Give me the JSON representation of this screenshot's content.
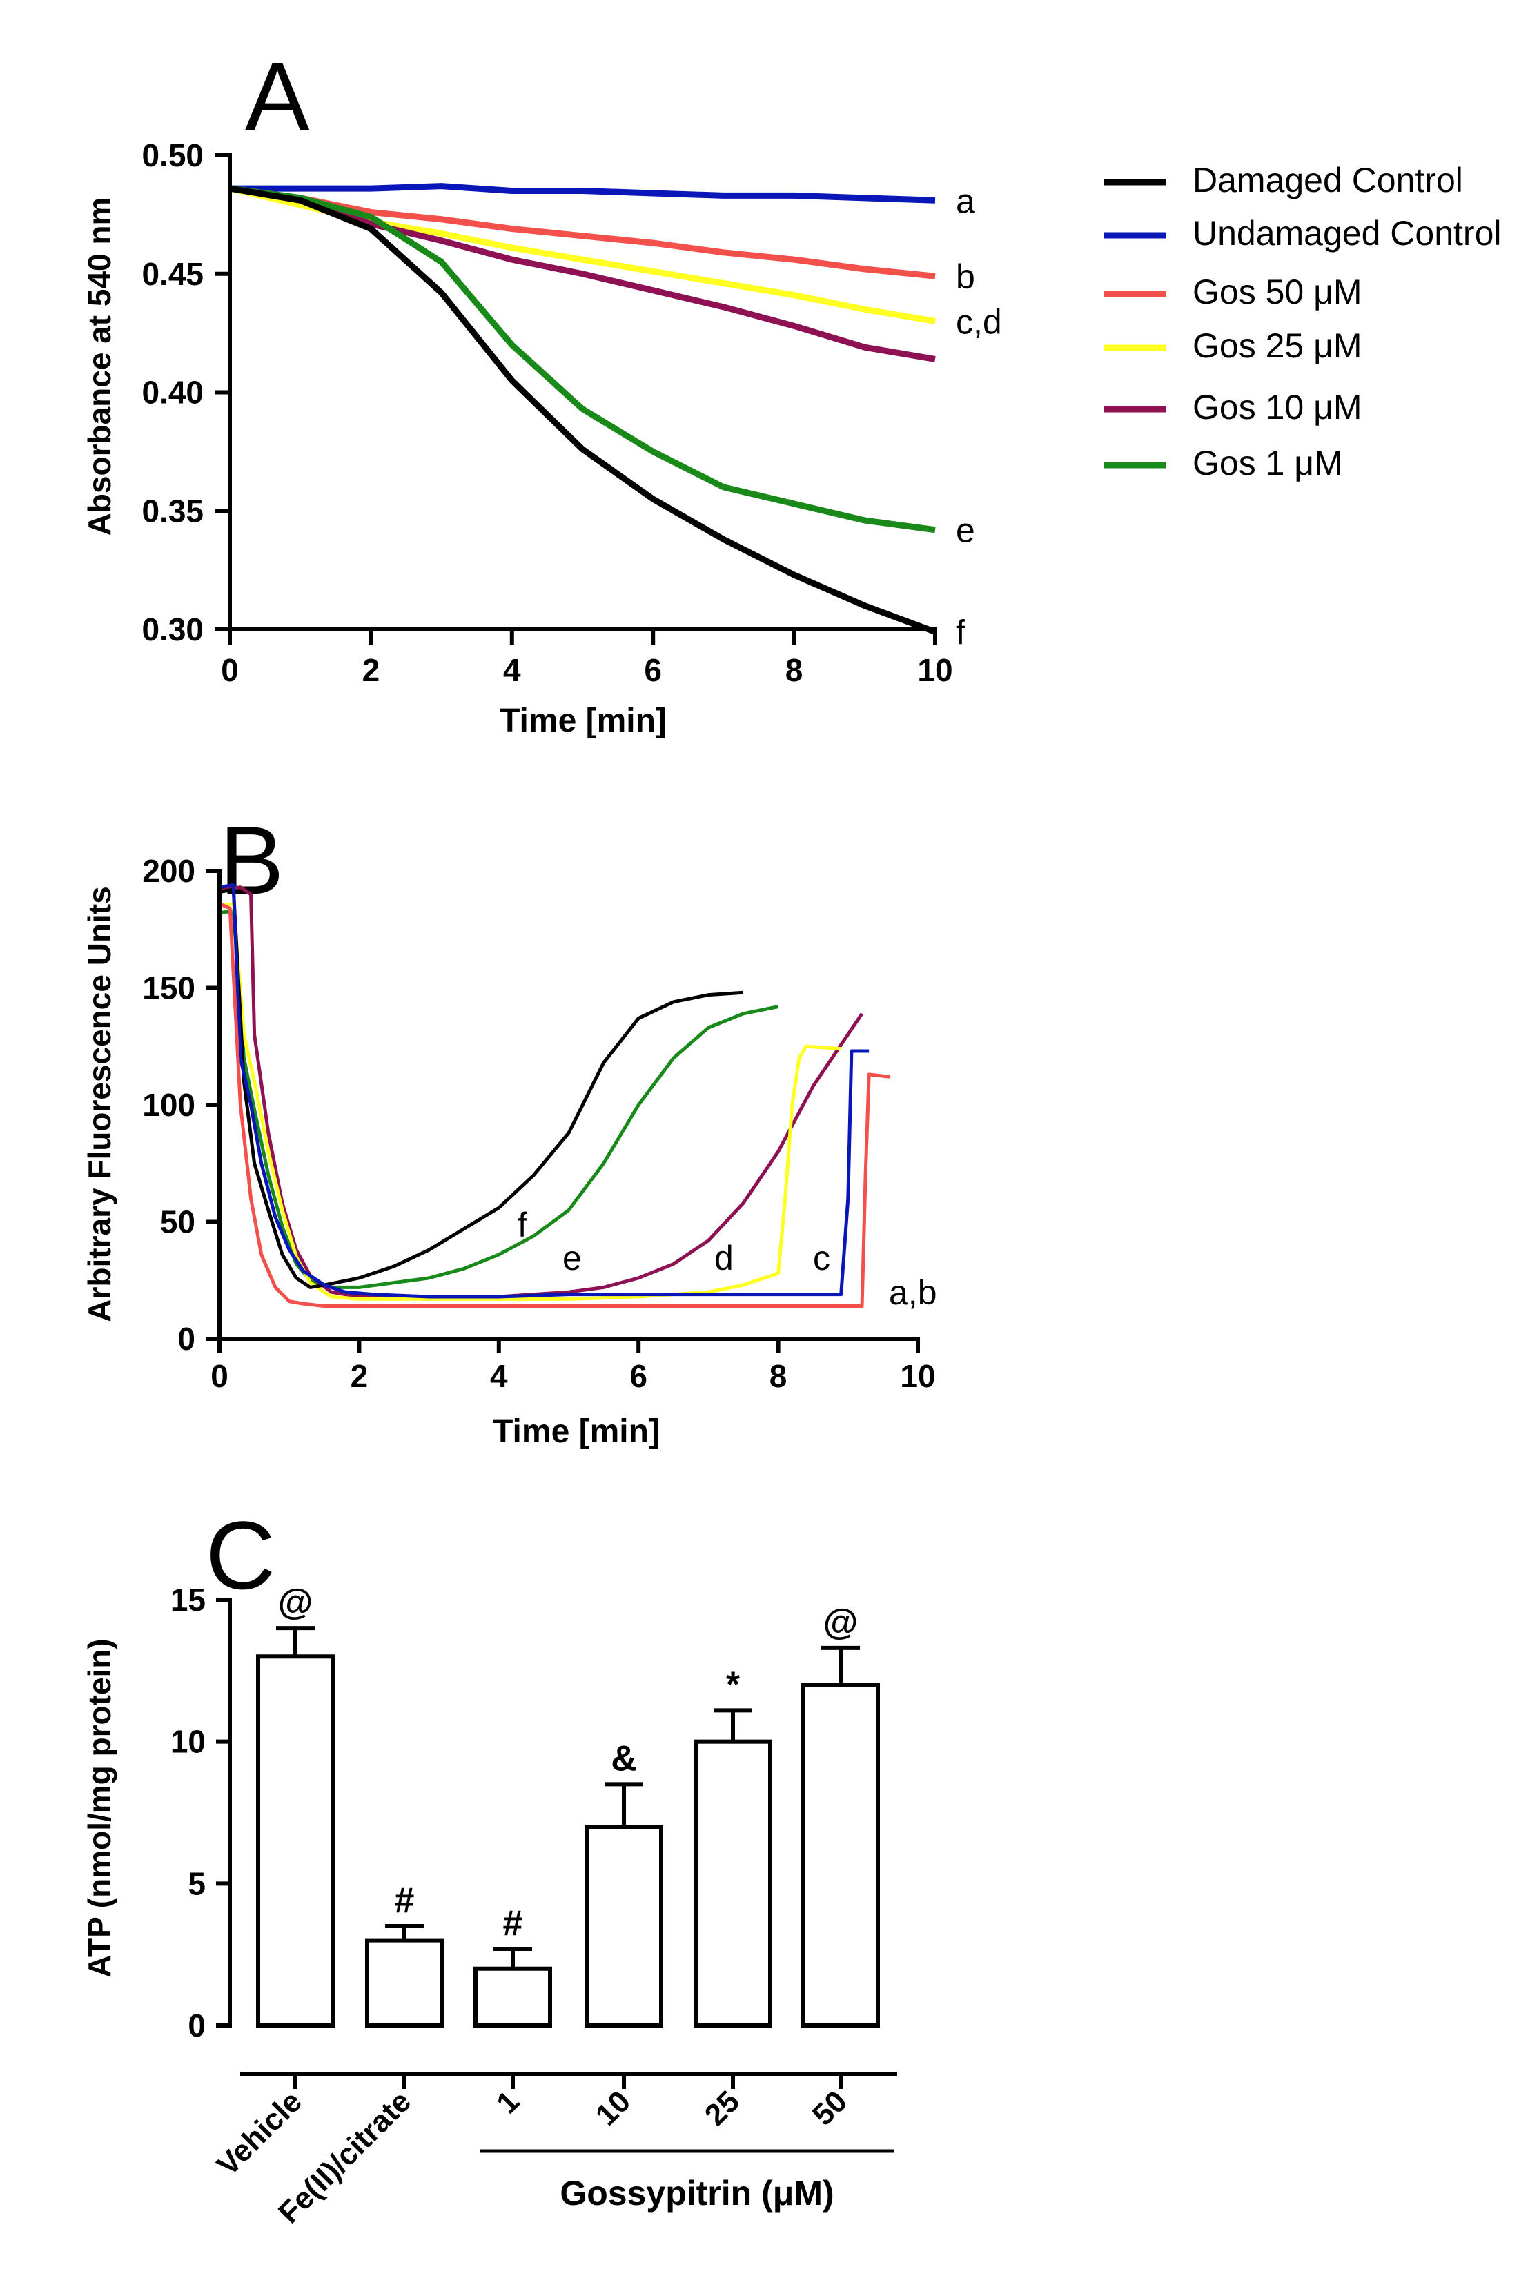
{
  "chart_data": [
    {
      "type": "line",
      "panel_label": "A",
      "title": "",
      "xlabel": "Time [min]",
      "ylabel": "Absorbance at 540 nm",
      "xlim": [
        0,
        10
      ],
      "ylim": [
        0.3,
        0.5
      ],
      "xticks": [
        0,
        2,
        4,
        6,
        8,
        10
      ],
      "yticks": [
        0.3,
        0.35,
        0.4,
        0.45,
        0.5
      ],
      "ytick_labels": [
        "0.30",
        "0.35",
        "0.40",
        "0.45",
        "0.50"
      ],
      "grid": false,
      "legend_position": "right",
      "series": [
        {
          "name": "Damaged Control",
          "color": "#000000",
          "end_label": "f",
          "x": [
            0,
            1,
            2,
            3,
            4,
            5,
            6,
            7,
            8,
            9,
            10
          ],
          "y": [
            0.486,
            0.481,
            0.469,
            0.442,
            0.405,
            0.376,
            0.355,
            0.338,
            0.323,
            0.31,
            0.299
          ]
        },
        {
          "name": "Undamaged Control",
          "color": "#0a17b8",
          "end_label": "a",
          "x": [
            0,
            1,
            2,
            3,
            4,
            5,
            6,
            7,
            8,
            9,
            10
          ],
          "y": [
            0.486,
            0.486,
            0.486,
            0.487,
            0.485,
            0.485,
            0.484,
            0.483,
            0.483,
            0.482,
            0.481
          ]
        },
        {
          "name": "Gos 50 μM",
          "color": "#f4504b",
          "end_label": "b",
          "x": [
            0,
            1,
            2,
            3,
            4,
            5,
            6,
            7,
            8,
            9,
            10
          ],
          "y": [
            0.486,
            0.482,
            0.476,
            0.473,
            0.469,
            0.466,
            0.463,
            0.459,
            0.456,
            0.452,
            0.449
          ]
        },
        {
          "name": "Gos 25 μM",
          "color": "#ffff22",
          "end_label": "c,d",
          "x": [
            0,
            1,
            2,
            3,
            4,
            5,
            6,
            7,
            8,
            9,
            10
          ],
          "y": [
            0.486,
            0.479,
            0.472,
            0.467,
            0.461,
            0.456,
            0.451,
            0.446,
            0.441,
            0.435,
            0.43
          ]
        },
        {
          "name": "Gos 10 μM",
          "color": "#8e1253",
          "end_label": "",
          "x": [
            0,
            1,
            2,
            3,
            4,
            5,
            6,
            7,
            8,
            9,
            10
          ],
          "y": [
            0.486,
            0.482,
            0.471,
            0.464,
            0.456,
            0.45,
            0.443,
            0.436,
            0.428,
            0.419,
            0.414
          ]
        },
        {
          "name": "Gos 1 μM",
          "color": "#198a1a",
          "end_label": "e",
          "x": [
            0,
            1,
            2,
            3,
            4,
            5,
            6,
            7,
            8,
            9,
            10
          ],
          "y": [
            0.486,
            0.482,
            0.474,
            0.455,
            0.42,
            0.393,
            0.375,
            0.36,
            0.353,
            0.346,
            0.342
          ]
        }
      ]
    },
    {
      "type": "line",
      "panel_label": "B",
      "title": "",
      "xlabel": "Time [min]",
      "ylabel": "Arbitrary Fluorescence Units",
      "xlim": [
        0,
        10
      ],
      "ylim": [
        0,
        200
      ],
      "xticks": [
        0,
        2,
        4,
        6,
        8,
        10
      ],
      "yticks": [
        0,
        50,
        100,
        150,
        200
      ],
      "grid": false,
      "series": [
        {
          "name": "Damaged Control",
          "color": "#000000",
          "label": "f",
          "x": [
            0,
            0.2,
            0.35,
            0.5,
            0.7,
            0.9,
            1.1,
            1.3,
            1.5,
            2,
            2.5,
            3,
            3.5,
            4,
            4.5,
            5,
            5.5,
            6,
            6.5,
            7,
            7.5
          ],
          "y": [
            191,
            192,
            110,
            75,
            55,
            36,
            26,
            22,
            23,
            26,
            31,
            38,
            47,
            56,
            70,
            88,
            118,
            137,
            144,
            147,
            148
          ]
        },
        {
          "name": "Undamaged Control",
          "color": "#0a17b8",
          "label": "a,b",
          "x": [
            0,
            0.2,
            0.3,
            0.45,
            0.6,
            0.8,
            1.0,
            1.2,
            1.5,
            1.8,
            2.2,
            3,
            4,
            5,
            6,
            7,
            8,
            8.9,
            9.0,
            9.05,
            9.3
          ],
          "y": [
            193,
            194,
            120,
            100,
            75,
            52,
            38,
            29,
            23,
            20,
            19,
            18,
            18,
            19,
            19,
            19,
            19,
            19,
            60,
            123,
            123
          ]
        },
        {
          "name": "Gos 50 μM",
          "color": "#f4504b",
          "label": "",
          "x": [
            0,
            0.15,
            0.3,
            0.45,
            0.6,
            0.8,
            1.0,
            1.2,
            1.5,
            2,
            3,
            4,
            5,
            6,
            7,
            8,
            9.2,
            9.25,
            9.3,
            9.6
          ],
          "y": [
            186,
            184,
            100,
            60,
            36,
            22,
            16,
            15,
            14,
            14,
            14,
            14,
            14,
            14,
            14,
            14,
            14,
            70,
            113,
            112
          ]
        },
        {
          "name": "Gos 25 μM",
          "color": "#ffff22",
          "label": "c",
          "x": [
            0,
            0.2,
            0.35,
            0.5,
            0.7,
            0.9,
            1.1,
            1.3,
            1.6,
            2,
            3,
            4,
            5,
            6,
            7,
            7.5,
            8,
            8.1,
            8.2,
            8.3,
            8.4,
            8.9
          ],
          "y": [
            185,
            186,
            130,
            110,
            80,
            55,
            35,
            24,
            18,
            17,
            17,
            17,
            17,
            18,
            20,
            23,
            28,
            60,
            100,
            120,
            125,
            124
          ]
        },
        {
          "name": "Gos 10 μM",
          "color": "#8e1253",
          "label": "d",
          "x": [
            0,
            0.3,
            0.45,
            0.5,
            0.7,
            0.9,
            1.1,
            1.3,
            1.6,
            2,
            3,
            4,
            5,
            5.5,
            6,
            6.5,
            7,
            7.5,
            8,
            8.5,
            9.2
          ],
          "y": [
            192,
            193,
            190,
            130,
            88,
            58,
            38,
            27,
            20,
            18,
            17,
            18,
            20,
            22,
            26,
            32,
            42,
            58,
            80,
            108,
            139
          ]
        },
        {
          "name": "Gos 1 μM",
          "color": "#198a1a",
          "label": "e",
          "x": [
            0,
            0.2,
            0.35,
            0.5,
            0.7,
            0.9,
            1.1,
            1.3,
            1.6,
            2,
            2.5,
            3,
            3.5,
            4,
            4.5,
            5,
            5.5,
            6,
            6.5,
            7,
            7.5,
            8
          ],
          "y": [
            182,
            183,
            120,
            98,
            70,
            48,
            32,
            25,
            22,
            22,
            24,
            26,
            30,
            36,
            44,
            55,
            75,
            100,
            120,
            133,
            139,
            142
          ]
        }
      ]
    },
    {
      "type": "bar",
      "panel_label": "C",
      "title": "",
      "ylabel": "ATP (nmol/mg protein)",
      "ylim": [
        0,
        15
      ],
      "yticks": [
        0,
        5,
        10,
        15
      ],
      "categories": [
        "Vehicle",
        "Fe(II)/citrate",
        "1",
        "10",
        "25",
        "50"
      ],
      "values": [
        13.0,
        3.0,
        2.0,
        7.0,
        10.0,
        12.0
      ],
      "errors": [
        1.0,
        0.5,
        0.7,
        1.5,
        1.1,
        1.3
      ],
      "annotations": [
        "@",
        "#",
        "#",
        "&",
        "*",
        "@"
      ],
      "group_label": "Gossypitrin (μM)",
      "grid": false
    }
  ]
}
